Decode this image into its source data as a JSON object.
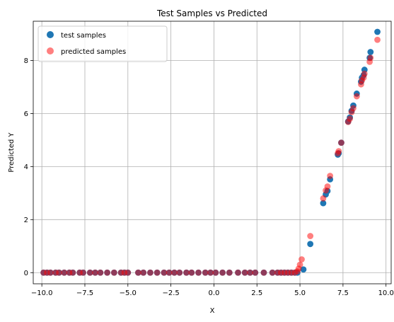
{
  "chart_data": {
    "type": "scatter",
    "title": "Test Samples vs Predicted",
    "xlabel": "X",
    "ylabel": "Predicted Y",
    "xlim": [
      -10.5,
      10.3
    ],
    "ylim": [
      -0.42,
      9.48
    ],
    "xticks": [
      -10.0,
      -7.5,
      -5.0,
      -2.5,
      0.0,
      2.5,
      5.0,
      7.5,
      10.0
    ],
    "xtick_labels": [
      "−10.0",
      "−7.5",
      "−5.0",
      "−2.5",
      "0.0",
      "2.5",
      "5.0",
      "7.5",
      "10.0"
    ],
    "yticks": [
      0,
      2,
      4,
      6,
      8
    ],
    "ytick_labels": [
      "0",
      "2",
      "4",
      "6",
      "8"
    ],
    "grid": true,
    "legend_position": "top-left",
    "series": [
      {
        "name": "test samples",
        "color": "#1f77b4",
        "alpha": 1.0,
        "points": [
          [
            -9.9,
            0
          ],
          [
            -9.7,
            0
          ],
          [
            -9.5,
            0
          ],
          [
            -9.2,
            0
          ],
          [
            -9.0,
            0
          ],
          [
            -8.7,
            0
          ],
          [
            -8.4,
            0
          ],
          [
            -8.2,
            0
          ],
          [
            -7.8,
            0
          ],
          [
            -7.6,
            0
          ],
          [
            -7.2,
            0
          ],
          [
            -6.9,
            0
          ],
          [
            -6.6,
            0
          ],
          [
            -6.2,
            0
          ],
          [
            -5.8,
            0
          ],
          [
            -5.4,
            0
          ],
          [
            -5.2,
            0
          ],
          [
            -5.0,
            0
          ],
          [
            -4.4,
            0
          ],
          [
            -4.1,
            0
          ],
          [
            -3.7,
            0
          ],
          [
            -3.3,
            0
          ],
          [
            -2.9,
            0
          ],
          [
            -2.6,
            0
          ],
          [
            -2.3,
            0
          ],
          [
            -2.0,
            0
          ],
          [
            -1.6,
            0
          ],
          [
            -1.3,
            0
          ],
          [
            -0.9,
            0
          ],
          [
            -0.5,
            0
          ],
          [
            -0.2,
            0
          ],
          [
            0.1,
            0
          ],
          [
            0.5,
            0
          ],
          [
            0.9,
            0
          ],
          [
            1.4,
            0
          ],
          [
            1.8,
            0
          ],
          [
            2.1,
            0
          ],
          [
            2.4,
            0
          ],
          [
            2.9,
            0
          ],
          [
            3.4,
            0
          ],
          [
            3.7,
            0
          ],
          [
            3.9,
            0
          ],
          [
            4.1,
            0
          ],
          [
            4.3,
            0
          ],
          [
            4.5,
            0
          ],
          [
            4.7,
            0
          ],
          [
            4.85,
            0
          ],
          [
            5.2,
            0.12
          ],
          [
            5.6,
            1.08
          ],
          [
            6.35,
            2.62
          ],
          [
            6.5,
            2.95
          ],
          [
            6.6,
            3.08
          ],
          [
            6.75,
            3.52
          ],
          [
            7.2,
            4.45
          ],
          [
            7.25,
            4.5
          ],
          [
            7.4,
            4.9
          ],
          [
            7.8,
            5.7
          ],
          [
            7.9,
            5.85
          ],
          [
            8.0,
            6.1
          ],
          [
            8.1,
            6.3
          ],
          [
            8.3,
            6.75
          ],
          [
            8.55,
            7.2
          ],
          [
            8.6,
            7.35
          ],
          [
            8.7,
            7.45
          ],
          [
            8.75,
            7.65
          ],
          [
            9.05,
            8.1
          ],
          [
            9.1,
            8.32
          ],
          [
            9.5,
            9.08
          ]
        ]
      },
      {
        "name": "predicted samples",
        "color": "#ff0000",
        "alpha": 0.5,
        "points": [
          [
            -9.9,
            0
          ],
          [
            -9.7,
            0
          ],
          [
            -9.5,
            0
          ],
          [
            -9.2,
            0
          ],
          [
            -9.0,
            0
          ],
          [
            -8.7,
            0
          ],
          [
            -8.4,
            0
          ],
          [
            -8.2,
            0
          ],
          [
            -7.8,
            0
          ],
          [
            -7.6,
            0
          ],
          [
            -7.2,
            0
          ],
          [
            -6.9,
            0
          ],
          [
            -6.6,
            0
          ],
          [
            -6.2,
            0
          ],
          [
            -5.8,
            0
          ],
          [
            -5.4,
            0
          ],
          [
            -5.2,
            0
          ],
          [
            -5.0,
            0
          ],
          [
            -4.4,
            0
          ],
          [
            -4.1,
            0
          ],
          [
            -3.7,
            0
          ],
          [
            -3.3,
            0
          ],
          [
            -2.9,
            0
          ],
          [
            -2.6,
            0
          ],
          [
            -2.3,
            0
          ],
          [
            -2.0,
            0
          ],
          [
            -1.6,
            0
          ],
          [
            -1.3,
            0
          ],
          [
            -0.9,
            0
          ],
          [
            -0.5,
            0
          ],
          [
            -0.2,
            0
          ],
          [
            0.1,
            0
          ],
          [
            0.5,
            0
          ],
          [
            0.9,
            0
          ],
          [
            1.4,
            0
          ],
          [
            1.8,
            0
          ],
          [
            2.1,
            0
          ],
          [
            2.4,
            0
          ],
          [
            2.9,
            0
          ],
          [
            3.4,
            0
          ],
          [
            3.7,
            0
          ],
          [
            3.9,
            0
          ],
          [
            4.1,
            0
          ],
          [
            4.3,
            0
          ],
          [
            4.5,
            0
          ],
          [
            4.7,
            0
          ],
          [
            4.85,
            0.05
          ],
          [
            4.92,
            0.15
          ],
          [
            5.0,
            0.3
          ],
          [
            5.1,
            0.5
          ],
          [
            5.6,
            1.38
          ],
          [
            6.35,
            2.8
          ],
          [
            6.5,
            3.1
          ],
          [
            6.6,
            3.25
          ],
          [
            6.75,
            3.65
          ],
          [
            7.2,
            4.5
          ],
          [
            7.25,
            4.58
          ],
          [
            7.4,
            4.9
          ],
          [
            7.8,
            5.68
          ],
          [
            7.9,
            5.8
          ],
          [
            8.0,
            6.05
          ],
          [
            8.1,
            6.2
          ],
          [
            8.3,
            6.65
          ],
          [
            8.55,
            7.1
          ],
          [
            8.6,
            7.25
          ],
          [
            8.7,
            7.35
          ],
          [
            8.75,
            7.5
          ],
          [
            9.05,
            7.95
          ],
          [
            9.1,
            8.1
          ],
          [
            9.5,
            8.78
          ]
        ]
      }
    ]
  }
}
